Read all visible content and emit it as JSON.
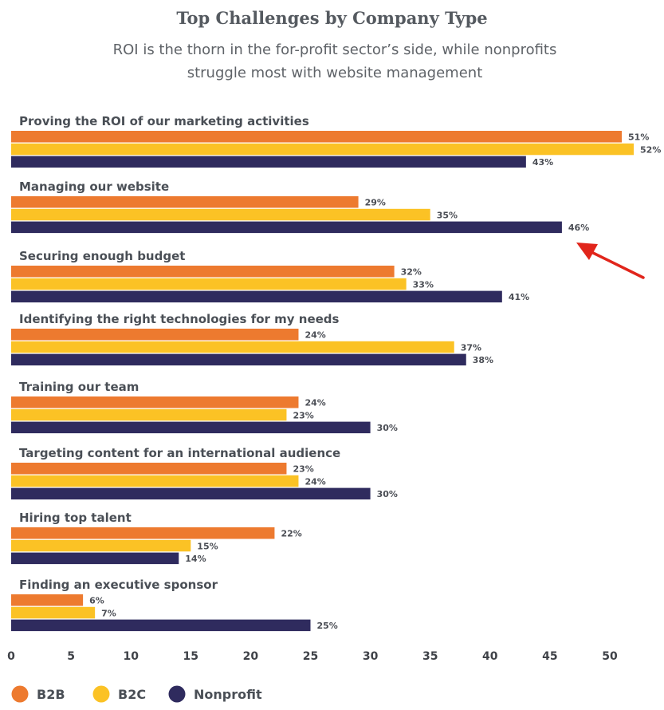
{
  "colors": {
    "B2B": "#ed7a2f",
    "B2C": "#fbc225",
    "Nonprofit": "#2f2b5e",
    "arrow": "#e1251b"
  },
  "chart_data": {
    "type": "bar",
    "orientation": "horizontal",
    "title": "Top Challenges by Company Type",
    "subtitle": "ROI is the thorn in the for-profit sector’s side, while nonprofits struggle most with website management",
    "categories": [
      "Proving the ROI of our marketing activities",
      "Managing our website",
      "Securing enough budget",
      "Identifying the right technologies for my needs",
      "Training our team",
      "Targeting content for an international audience",
      "Hiring top talent",
      "Finding an executive sponsor"
    ],
    "series": [
      {
        "name": "B2B",
        "values": [
          51,
          29,
          32,
          24,
          24,
          23,
          22,
          6
        ]
      },
      {
        "name": "B2C",
        "values": [
          52,
          35,
          33,
          37,
          23,
          24,
          15,
          7
        ]
      },
      {
        "name": "Nonprofit",
        "values": [
          43,
          46,
          41,
          38,
          30,
          30,
          14,
          25
        ]
      }
    ],
    "value_suffix": "%",
    "xlim": [
      0,
      53
    ],
    "xticks": [
      0,
      5,
      10,
      15,
      20,
      25,
      30,
      35,
      40,
      45,
      50
    ],
    "xlabel": "",
    "ylabel": "",
    "grid": false,
    "legend_position": "bottom-left",
    "annotations": [
      {
        "type": "arrow",
        "points_to": "Managing our website / Nonprofit 46%"
      }
    ]
  }
}
